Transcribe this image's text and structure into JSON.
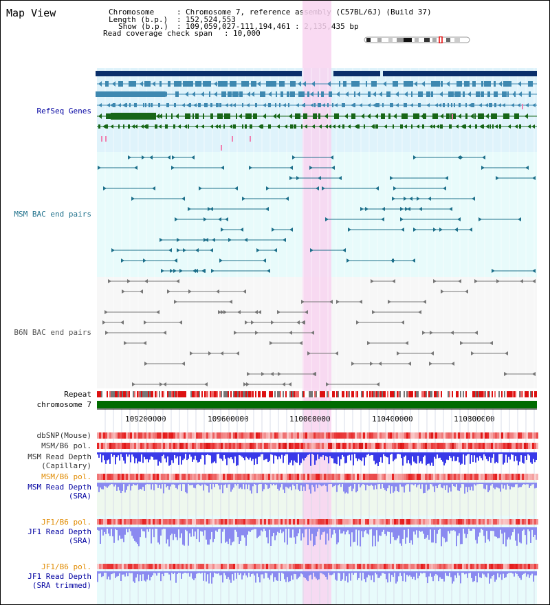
{
  "map_title": "Map View",
  "info": {
    "chromosome_key": "Chromosome",
    "chromosome_value": "Chromosome 7, reference assembly (C57BL/6J) (Build 37)",
    "length_key": "Length (b.p.)",
    "length_value": "152,524,553",
    "show_key": "Show (b.p.)",
    "show_value": "109,059,027-111,194,461 : 2,135,435 bp",
    "coverage_key": "Read coverage check span",
    "coverage_value": "10,000"
  },
  "tracks": {
    "refseq": "RefSeq Genes",
    "msm_bac": "MSM BAC end pairs",
    "b6n_bac": "B6N BAC end pairs",
    "repeat": "Repeat",
    "chromosome": "chromosome 7",
    "dbsnp": "dbSNP(Mouse)",
    "msm_pol": "MSM/B6 pol.",
    "msm_depth_cap": "MSM Read Depth",
    "msm_depth_cap_sub": "(Capillary)",
    "msm_pol2": "MSM/B6 pol.",
    "msm_depth_sra": "MSM Read Depth",
    "msm_depth_sra_sub": "(SRA)",
    "jf1_pol": "JF1/B6 pol.",
    "jf1_depth_sra": "JF1 Read Depth",
    "jf1_depth_sra_sub": "(SRA)",
    "jf1_pol2": "JF1/B6 pol.",
    "jf1_depth_trim": "JF1 Read Depth",
    "jf1_depth_trim_sub": "(SRA trimmed)"
  },
  "axis": {
    "ticks": [
      "109200000",
      "109600000",
      "110000000",
      "110400000",
      "110800000"
    ]
  },
  "colors": {
    "refseq_bg": "#dff3fb",
    "msm_bg": "#e8fbfb",
    "b6n_bg": "#f7f7f7",
    "highlight": "#f8d4f0",
    "navy": "#0a2f6b",
    "teal_gene": "#3e88b0",
    "green_gene": "#176617",
    "msm_line": "#1d6f8a",
    "b6n_line": "#777777",
    "chrom_green": "#006b00",
    "label_blue": "#0000a0",
    "label_orange": "#e08a00",
    "depth_blue": "#3a3ae8",
    "depth_light": "#8a8af0"
  }
}
